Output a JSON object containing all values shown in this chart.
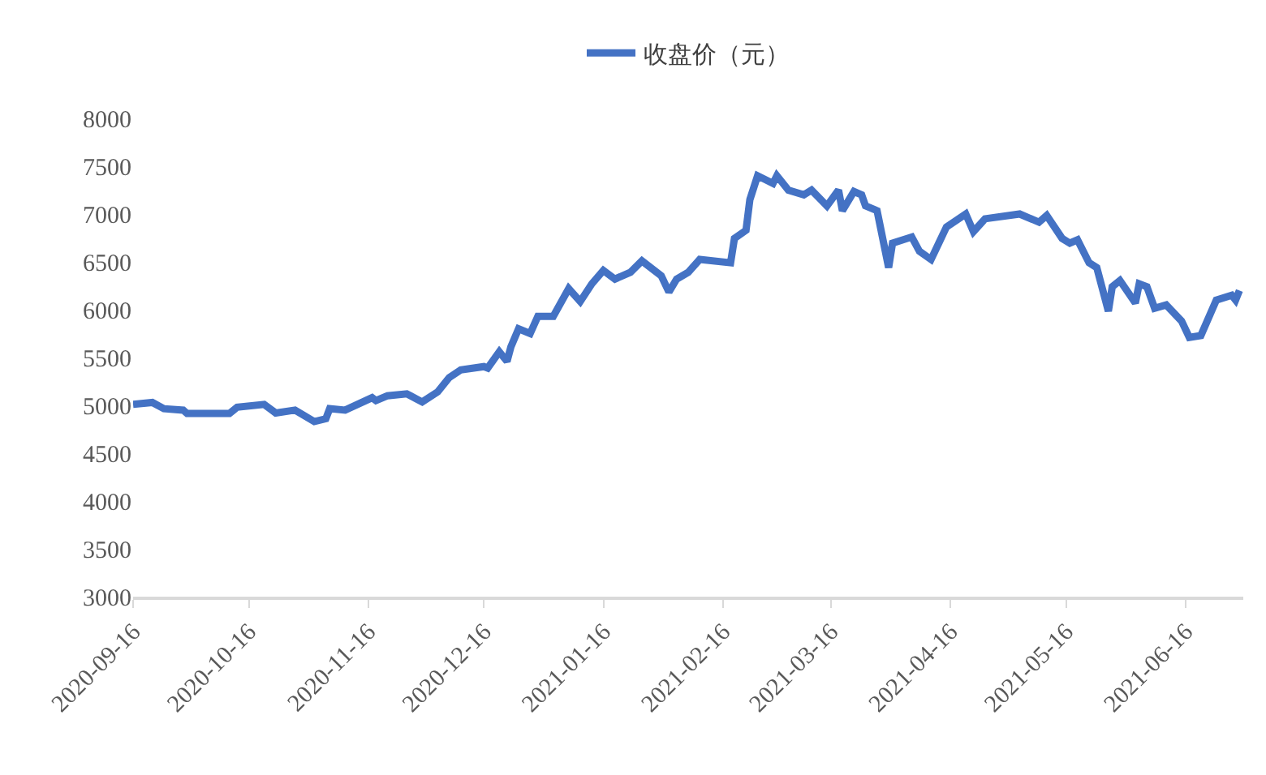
{
  "chart_data": {
    "type": "line",
    "legend": "top",
    "grid": false,
    "marker": "none",
    "line_style": "solid",
    "xlim": [
      "2020-09-16",
      "2021-07-01"
    ],
    "ylim": [
      3000,
      8000
    ],
    "xticks": [
      "2020-09-16",
      "2020-10-16",
      "2020-11-16",
      "2020-12-16",
      "2021-01-16",
      "2021-02-16",
      "2021-03-16",
      "2021-04-16",
      "2021-05-16",
      "2021-06-16"
    ],
    "yticks": [
      3000,
      3500,
      4000,
      4500,
      5000,
      5500,
      6000,
      6500,
      7000,
      7500,
      8000
    ],
    "x": [
      "2020-09-16",
      "2020-09-21",
      "2020-09-24",
      "2020-09-29",
      "2020-09-30",
      "2020-10-11",
      "2020-10-13",
      "2020-10-20",
      "2020-10-23",
      "2020-10-28",
      "2020-11-02",
      "2020-11-05",
      "2020-11-06",
      "2020-11-10",
      "2020-11-17",
      "2020-11-18",
      "2020-11-21",
      "2020-11-26",
      "2020-11-30",
      "2020-12-04",
      "2020-12-07",
      "2020-12-10",
      "2020-12-16",
      "2020-12-17",
      "2020-12-20",
      "2020-12-22",
      "2020-12-23",
      "2020-12-25",
      "2020-12-28",
      "2020-12-30",
      "2021-01-03",
      "2021-01-07",
      "2021-01-10",
      "2021-01-13",
      "2021-01-16",
      "2021-01-19",
      "2021-01-23",
      "2021-01-26",
      "2021-01-31",
      "2021-02-02",
      "2021-02-04",
      "2021-02-07",
      "2021-02-10",
      "2021-02-18",
      "2021-02-19",
      "2021-02-22",
      "2021-02-23",
      "2021-02-25",
      "2021-03-01",
      "2021-03-02",
      "2021-03-05",
      "2021-03-09",
      "2021-03-11",
      "2021-03-15",
      "2021-03-18",
      "2021-03-19",
      "2021-03-22",
      "2021-03-24",
      "2021-03-25",
      "2021-03-28",
      "2021-03-31",
      "2021-04-01",
      "2021-04-06",
      "2021-04-08",
      "2021-04-11",
      "2021-04-13",
      "2021-04-15",
      "2021-04-20",
      "2021-04-22",
      "2021-04-25",
      "2021-05-04",
      "2021-05-09",
      "2021-05-11",
      "2021-05-15",
      "2021-05-17",
      "2021-05-19",
      "2021-05-22",
      "2021-05-24",
      "2021-05-27",
      "2021-05-28",
      "2021-05-30",
      "2021-06-03",
      "2021-06-04",
      "2021-06-06",
      "2021-06-08",
      "2021-06-11",
      "2021-06-15",
      "2021-06-17",
      "2021-06-20",
      "2021-06-24",
      "2021-06-28",
      "2021-06-29",
      "2021-06-30"
    ],
    "series": [
      {
        "name": "收盘价（元）",
        "color": "#4472c4",
        "values": [
          5010,
          5030,
          4965,
          4950,
          4915,
          4915,
          4980,
          5010,
          4920,
          4950,
          4830,
          4860,
          4965,
          4950,
          5080,
          5050,
          5100,
          5120,
          5035,
          5140,
          5290,
          5370,
          5405,
          5390,
          5560,
          5460,
          5610,
          5800,
          5750,
          5930,
          5930,
          6220,
          6085,
          6270,
          6410,
          6320,
          6390,
          6510,
          6355,
          6185,
          6320,
          6390,
          6525,
          6490,
          6745,
          6830,
          7150,
          7400,
          7320,
          7400,
          7250,
          7200,
          7250,
          7085,
          7250,
          7035,
          7235,
          7200,
          7085,
          7035,
          6440,
          6695,
          6760,
          6610,
          6525,
          6695,
          6865,
          7000,
          6815,
          6950,
          7000,
          6915,
          6985,
          6745,
          6695,
          6730,
          6490,
          6440,
          5985,
          6240,
          6305,
          6070,
          6270,
          6240,
          6015,
          6050,
          5880,
          5710,
          5730,
          6100,
          6150,
          6100,
          6200
        ]
      }
    ]
  }
}
